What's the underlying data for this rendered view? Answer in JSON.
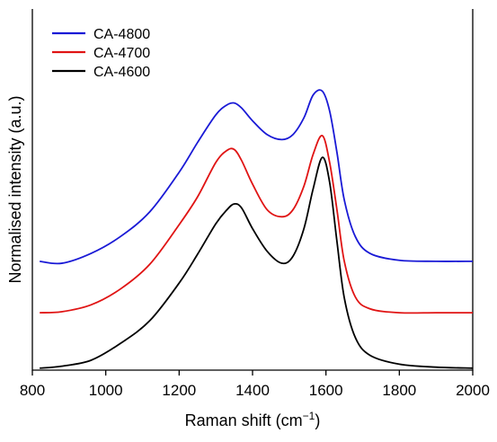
{
  "chart_data": {
    "type": "line",
    "title": "",
    "xlabel": "Raman shift (cm",
    "xlabel_sup": "−1",
    "xlabel_suffix": ")",
    "ylabel": "Normalised intensity (a.u.)",
    "xlim": [
      800,
      2000
    ],
    "ylim": [
      0,
      3.65
    ],
    "xticks": [
      800,
      1000,
      1200,
      1400,
      1600,
      1800,
      2000
    ],
    "yticks_shown": false,
    "grid": false,
    "legend_position": "top-left",
    "series": [
      {
        "name": "CA-4800",
        "color": "#1a1ad6",
        "x": [
          820,
          880,
          960,
          1040,
          1120,
          1200,
          1250,
          1300,
          1330,
          1350,
          1370,
          1400,
          1440,
          1480,
          1510,
          1540,
          1565,
          1590,
          1610,
          1630,
          1650,
          1680,
          1720,
          1800,
          1900,
          2000
        ],
        "y": [
          1.1,
          1.08,
          1.18,
          1.35,
          1.6,
          2.0,
          2.3,
          2.58,
          2.68,
          2.7,
          2.65,
          2.52,
          2.38,
          2.33,
          2.38,
          2.55,
          2.78,
          2.82,
          2.62,
          2.2,
          1.72,
          1.35,
          1.18,
          1.11,
          1.1,
          1.1
        ]
      },
      {
        "name": "CA-4700",
        "color": "#e01414",
        "x": [
          820,
          880,
          960,
          1040,
          1120,
          1200,
          1250,
          1300,
          1330,
          1350,
          1370,
          1400,
          1440,
          1480,
          1510,
          1540,
          1565,
          1590,
          1610,
          1630,
          1650,
          1680,
          1720,
          1800,
          1900,
          2000
        ],
        "y": [
          0.58,
          0.59,
          0.66,
          0.82,
          1.07,
          1.47,
          1.75,
          2.1,
          2.22,
          2.23,
          2.12,
          1.88,
          1.62,
          1.55,
          1.62,
          1.86,
          2.18,
          2.37,
          2.1,
          1.62,
          1.1,
          0.74,
          0.62,
          0.58,
          0.58,
          0.58
        ]
      },
      {
        "name": "CA-4600",
        "color": "#000000",
        "x": [
          820,
          880,
          960,
          1040,
          1120,
          1200,
          1250,
          1300,
          1330,
          1350,
          1370,
          1400,
          1440,
          1480,
          1510,
          1540,
          1565,
          1590,
          1610,
          1630,
          1650,
          1680,
          1720,
          1800,
          1900,
          2000
        ],
        "y": [
          0.02,
          0.04,
          0.1,
          0.27,
          0.5,
          0.88,
          1.17,
          1.48,
          1.62,
          1.68,
          1.64,
          1.43,
          1.2,
          1.08,
          1.15,
          1.43,
          1.83,
          2.15,
          1.9,
          1.3,
          0.73,
          0.33,
          0.15,
          0.06,
          0.03,
          0.02
        ]
      }
    ]
  }
}
